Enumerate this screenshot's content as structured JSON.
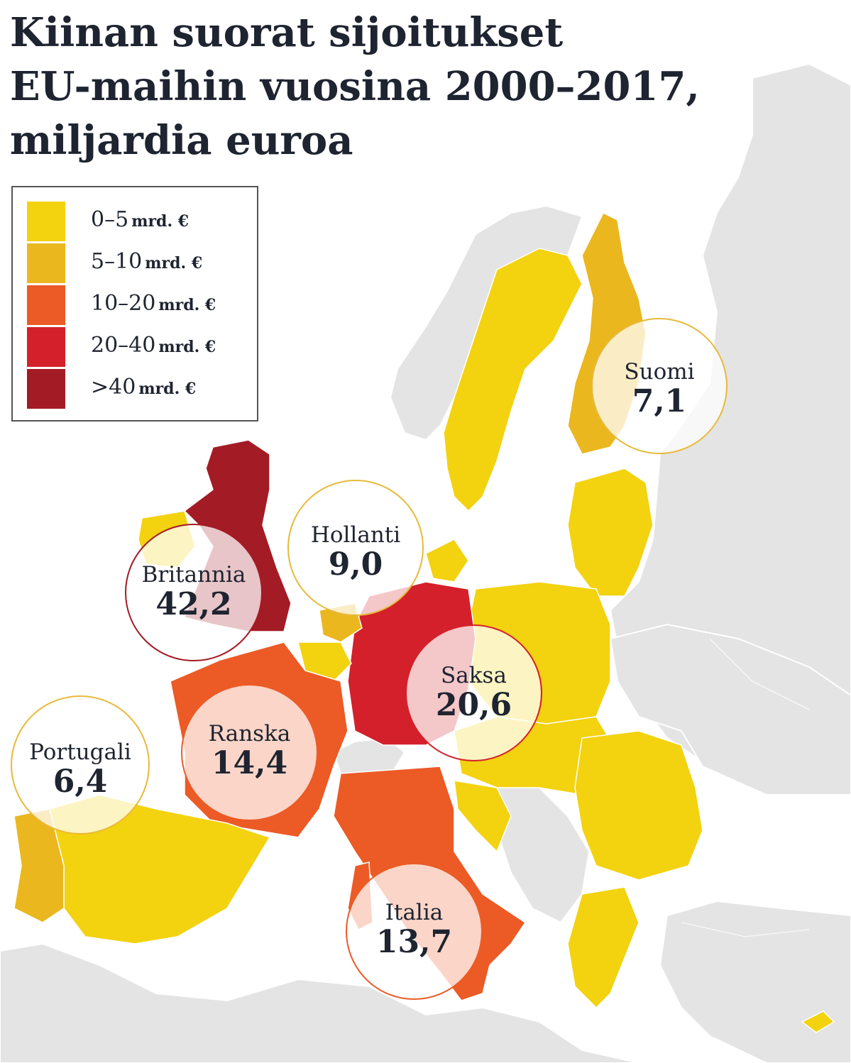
{
  "title_lines": [
    "Kiinan suorat sijoitukset",
    "EU-maihin vuosina 2000–2017,",
    "miljardia euroa"
  ],
  "colors": {
    "background": "#ffffff",
    "non_eu_land": "#e4e4e4",
    "border": "#ffffff",
    "class_0_5": "#f3d20f",
    "class_5_10": "#ebb71f",
    "class_10_20": "#ec5a26",
    "class_20_40": "#d4202a",
    "class_40_plus": "#a31b25"
  },
  "legend": {
    "items": [
      {
        "range": "0–5",
        "unit": "mrd. €",
        "color": "#f3d20f"
      },
      {
        "range": "5–10",
        "unit": "mrd. €",
        "color": "#ebb71f"
      },
      {
        "range": "10–20",
        "unit": "mrd. €",
        "color": "#ec5a26"
      },
      {
        "range": "20–40",
        "unit": "mrd. €",
        "color": "#d4202a"
      },
      {
        "range": ">40",
        "unit": "mrd. €",
        "color": "#a31b25"
      }
    ]
  },
  "countries": [
    {
      "name": "Suomi",
      "value": "7,1",
      "ring": "#e8b93a"
    },
    {
      "name": "Hollanti",
      "value": "9,0",
      "ring": "#e8b93a"
    },
    {
      "name": "Britannia",
      "value": "42,2",
      "ring": "#a31b25"
    },
    {
      "name": "Saksa",
      "value": "20,6",
      "ring": "#d4202a"
    },
    {
      "name": "Ranska",
      "value": "14,4",
      "ring": "#ec5a26"
    },
    {
      "name": "Portugali",
      "value": "6,4",
      "ring": "#e8b93a"
    },
    {
      "name": "Italia",
      "value": "13,7",
      "ring": "#ec5a26"
    }
  ]
}
